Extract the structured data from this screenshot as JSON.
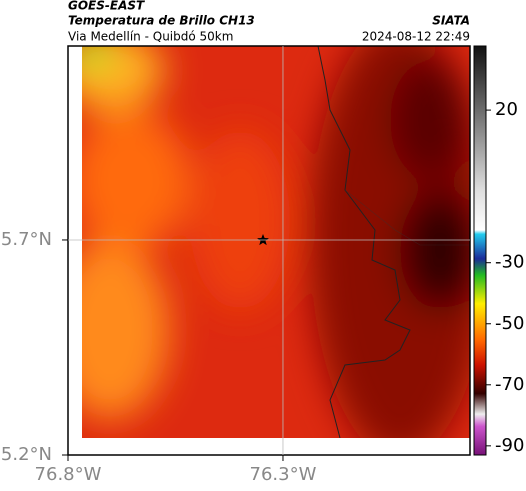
{
  "map": {
    "title": "GOES-EAST",
    "subtitle": "Temperatura de Brillo CH13",
    "region": "Via Medellín - Quibdó 50km",
    "source": "SIATA",
    "timestamp": "2024-08-12 22:49",
    "lat_lim": [
      5.2,
      6.151
    ],
    "lon_lim": [
      -76.8,
      -75.865
    ],
    "lat_ticks": [
      {
        "value": 5.7,
        "label": "5.7°N"
      },
      {
        "value": 5.2,
        "label": "5.2°N"
      }
    ],
    "lon_ticks": [
      {
        "value": -76.8,
        "label": "76.8°W"
      },
      {
        "value": -76.3,
        "label": "76.3°W"
      }
    ],
    "grid": true,
    "colorbar": {
      "lim": [
        -93,
        41
      ],
      "ticks": [
        20,
        -30,
        -50,
        -70,
        -90
      ]
    }
  }
}
